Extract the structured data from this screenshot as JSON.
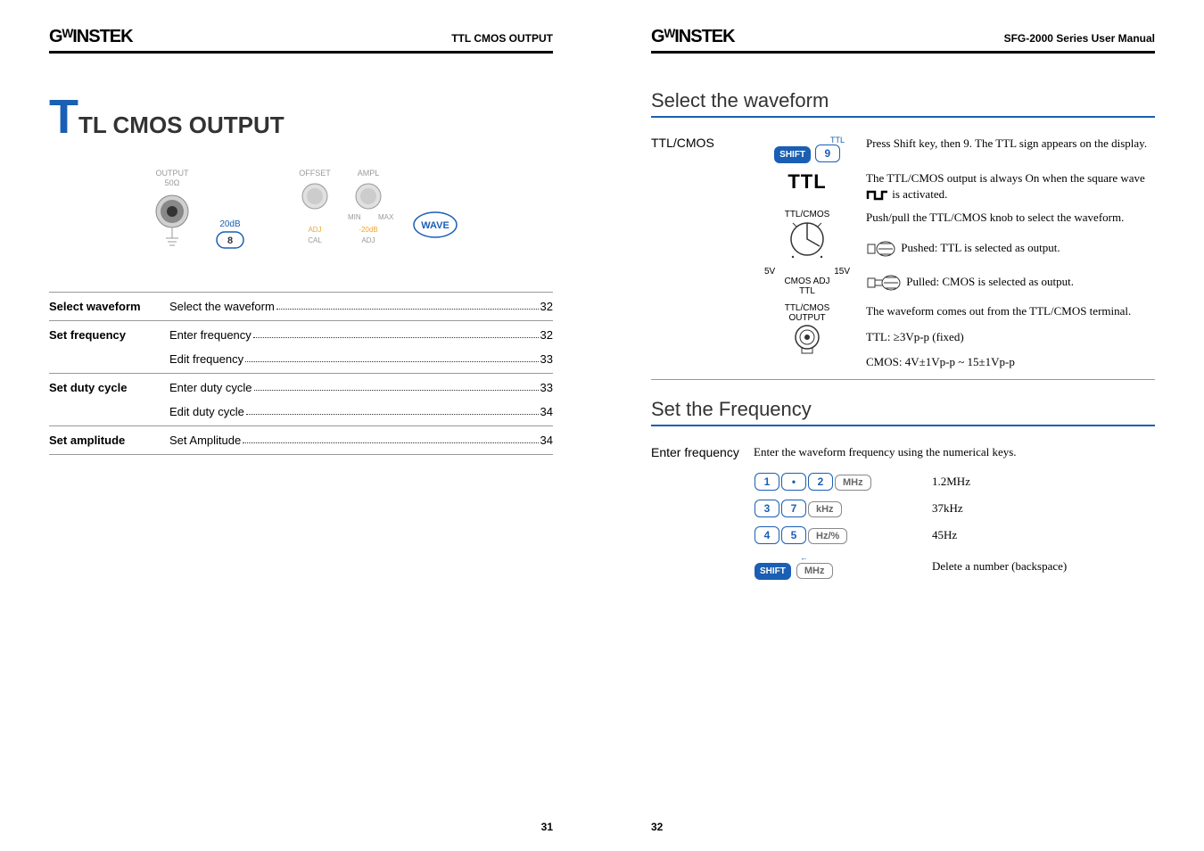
{
  "brand": "GᵂINSTEK",
  "left_page": {
    "header_title": "TTL CMOS OUTPUT",
    "main_title": "TL CMOS OUTPUT",
    "page_number": "31",
    "panel": {
      "output_label": "OUTPUT",
      "impedance": "50Ω",
      "btn_20db": "20dB",
      "btn_8": "8",
      "offset_label": "OFFSET",
      "ampl_label": "AMPL",
      "adj": "ADJ",
      "cal": "CAL",
      "min": "MIN",
      "max": "MAX",
      "neg20db": "-20dB",
      "wave": "WAVE"
    },
    "toc": [
      {
        "label": "Select waveform",
        "entries": [
          {
            "text": "Select the waveform",
            "page": "32"
          }
        ]
      },
      {
        "label": "Set frequency",
        "entries": [
          {
            "text": "Enter frequency",
            "page": "32"
          },
          {
            "text": "Edit frequency",
            "page": "33"
          }
        ]
      },
      {
        "label": "Set duty cycle",
        "entries": [
          {
            "text": "Enter duty cycle",
            "page": "33"
          },
          {
            "text": "Edit duty cycle",
            "page": "34"
          }
        ]
      },
      {
        "label": "Set amplitude",
        "entries": [
          {
            "text": "Set Amplitude",
            "page": "34"
          }
        ]
      }
    ]
  },
  "right_page": {
    "header_title": "SFG-2000 Series User Manual",
    "page_number": "32",
    "section1_title": "Select the waveform",
    "section2_title": "Set the Frequency",
    "ttl_cmos_label": "TTL/CMOS",
    "shift_label": "SHIFT",
    "key_9": "9",
    "key_ttl_label": "TTL",
    "instruction1": "Press Shift key, then 9. The TTL sign appears on the display.",
    "ttl_display": "TTL",
    "instruction2a": "The TTL/CMOS output is always On when the square wave",
    "instruction2b": "is activated.",
    "knob_top": "TTL/CMOS",
    "knob_5v": "5V",
    "knob_15v": "15V",
    "knob_cmos": "CMOS ADJ",
    "knob_ttl": "TTL",
    "instruction3": "Push/pull the TTL/CMOS knob to select the waveform.",
    "pushed_text": "Pushed: TTL is selected as output.",
    "pulled_text": "Pulled: CMOS is selected as output.",
    "output_top": "TTL/CMOS",
    "output_bot": "OUTPUT",
    "instruction4": "The waveform comes out from the TTL/CMOS terminal.",
    "ttl_spec": "TTL: ≥3Vp-p (fixed)",
    "cmos_spec": "CMOS: 4V±1Vp-p ~ 15±1Vp-p",
    "enter_freq_label": "Enter frequency",
    "enter_freq_text": "Enter the waveform frequency using the numerical keys.",
    "freq_rows": [
      {
        "keys": [
          "1",
          "•",
          "2",
          "MHz"
        ],
        "result": "1.2MHz"
      },
      {
        "keys": [
          "3",
          "7",
          "kHz"
        ],
        "result": "37kHz"
      },
      {
        "keys": [
          "4",
          "5",
          "Hz/%"
        ],
        "result": "45Hz"
      }
    ],
    "backspace_arrow": "←",
    "mhz": "MHz",
    "delete_text": "Delete a number (backspace)"
  },
  "colors": {
    "accent": "#1a5fb4",
    "text": "#000000",
    "gray": "#888888"
  }
}
